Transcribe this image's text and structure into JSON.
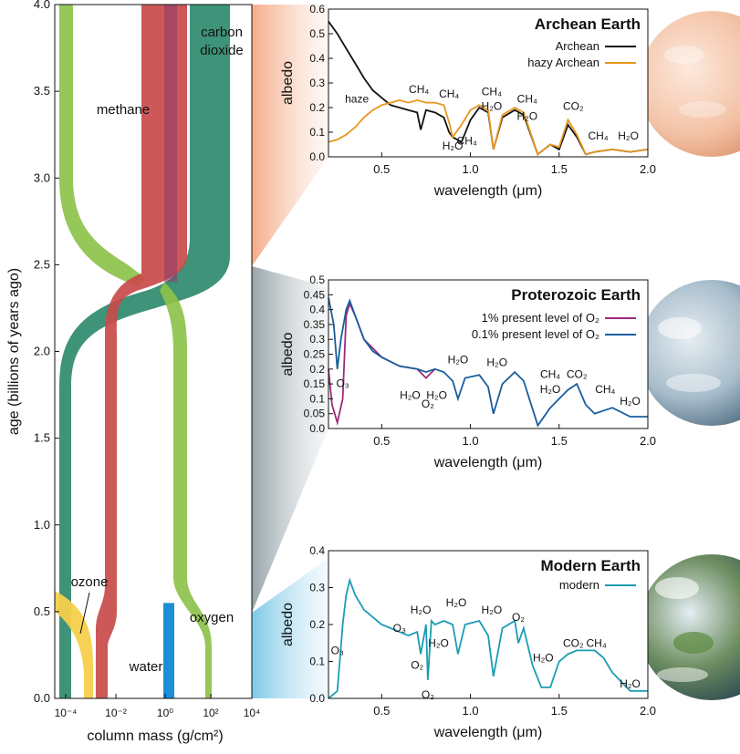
{
  "chart_data": [
    {
      "type": "area",
      "ylabel": "age (billions of years ago)",
      "xlabel": "column mass (g/cm²)",
      "x_scale": "log",
      "xlim": [
        1e-05,
        10000
      ],
      "ylim": [
        0,
        4.0
      ],
      "yticks": [
        "0.0",
        "0.5",
        "1.0",
        "1.5",
        "2.0",
        "2.5",
        "3.0",
        "3.5",
        "4.0"
      ],
      "xticks": [
        "10⁻⁴",
        "10⁻²",
        "10⁰",
        "10²",
        "10⁴"
      ],
      "series": [
        {
          "name": "carbon dioxide",
          "color": "#2e8a6e"
        },
        {
          "name": "methane",
          "color": "#c94a4a"
        },
        {
          "name": "oxygen",
          "color": "#8cc24b"
        },
        {
          "name": "ozone",
          "color": "#f5cf4a"
        },
        {
          "name": "water",
          "color": "#1a8fd8"
        }
      ],
      "labels": {
        "carbon_dioxide_1": "carbon",
        "carbon_dioxide_2": "dioxide",
        "methane": "methane",
        "oxygen": "oxygen",
        "ozone": "ozone",
        "water": "water"
      }
    },
    {
      "type": "line",
      "title": "Archean Earth",
      "xlabel": "wavelength (μm)",
      "ylabel": "albedo",
      "xlim": [
        0.2,
        2.0
      ],
      "ylim": [
        0,
        0.6
      ],
      "xticks": [
        "0.5",
        "1.0",
        "1.5",
        "2.0"
      ],
      "yticks": [
        "0.0",
        "0.1",
        "0.2",
        "0.3",
        "0.4",
        "0.5",
        "0.6"
      ],
      "series": [
        {
          "name": "Archean",
          "color": "#111111",
          "points": [
            [
              0.2,
              0.55
            ],
            [
              0.25,
              0.5
            ],
            [
              0.3,
              0.44
            ],
            [
              0.35,
              0.38
            ],
            [
              0.4,
              0.32
            ],
            [
              0.45,
              0.27
            ],
            [
              0.5,
              0.24
            ],
            [
              0.55,
              0.21
            ],
            [
              0.6,
              0.2
            ],
            [
              0.65,
              0.19
            ],
            [
              0.7,
              0.18
            ],
            [
              0.72,
              0.11
            ],
            [
              0.75,
              0.19
            ],
            [
              0.8,
              0.18
            ],
            [
              0.85,
              0.16
            ],
            [
              0.88,
              0.1
            ],
            [
              0.9,
              0.08
            ],
            [
              0.95,
              0.06
            ],
            [
              1.0,
              0.15
            ],
            [
              1.05,
              0.2
            ],
            [
              1.1,
              0.18
            ],
            [
              1.13,
              0.03
            ],
            [
              1.18,
              0.16
            ],
            [
              1.25,
              0.19
            ],
            [
              1.3,
              0.17
            ],
            [
              1.38,
              0.01
            ],
            [
              1.45,
              0.05
            ],
            [
              1.5,
              0.03
            ],
            [
              1.55,
              0.13
            ],
            [
              1.6,
              0.08
            ],
            [
              1.65,
              0.01
            ],
            [
              1.7,
              0.02
            ],
            [
              1.8,
              0.03
            ],
            [
              1.9,
              0.02
            ],
            [
              2.0,
              0.03
            ]
          ]
        },
        {
          "name": "hazy Archean",
          "color": "#e8961e",
          "points": [
            [
              0.2,
              0.06
            ],
            [
              0.25,
              0.07
            ],
            [
              0.3,
              0.09
            ],
            [
              0.35,
              0.12
            ],
            [
              0.4,
              0.16
            ],
            [
              0.45,
              0.19
            ],
            [
              0.5,
              0.21
            ],
            [
              0.55,
              0.22
            ],
            [
              0.6,
              0.23
            ],
            [
              0.65,
              0.22
            ],
            [
              0.7,
              0.23
            ],
            [
              0.75,
              0.22
            ],
            [
              0.8,
              0.22
            ],
            [
              0.85,
              0.21
            ],
            [
              0.88,
              0.14
            ],
            [
              0.9,
              0.08
            ],
            [
              0.95,
              0.13
            ],
            [
              1.0,
              0.19
            ],
            [
              1.05,
              0.21
            ],
            [
              1.1,
              0.19
            ],
            [
              1.13,
              0.03
            ],
            [
              1.18,
              0.17
            ],
            [
              1.25,
              0.2
            ],
            [
              1.3,
              0.18
            ],
            [
              1.38,
              0.01
            ],
            [
              1.45,
              0.05
            ],
            [
              1.5,
              0.04
            ],
            [
              1.55,
              0.15
            ],
            [
              1.6,
              0.09
            ],
            [
              1.65,
              0.01
            ],
            [
              1.7,
              0.02
            ],
            [
              1.8,
              0.03
            ],
            [
              1.9,
              0.02
            ],
            [
              2.0,
              0.03
            ]
          ]
        }
      ],
      "annotations": [
        {
          "text": "haze",
          "x": 0.36,
          "y": 0.22
        },
        {
          "text": "CH₄",
          "x": 0.71,
          "y": 0.26
        },
        {
          "text": "CH₄",
          "x": 0.88,
          "y": 0.24
        },
        {
          "text": "H₂O",
          "x": 0.9,
          "y": 0.03
        },
        {
          "text": "CH₄",
          "x": 0.98,
          "y": 0.05
        },
        {
          "text": "CH₄",
          "x": 1.12,
          "y": 0.25
        },
        {
          "text": "H₂O",
          "x": 1.12,
          "y": 0.19
        },
        {
          "text": "CH₄",
          "x": 1.32,
          "y": 0.22
        },
        {
          "text": "H₂O",
          "x": 1.32,
          "y": 0.15
        },
        {
          "text": "CO₂",
          "x": 1.58,
          "y": 0.19
        },
        {
          "text": "CH₄",
          "x": 1.72,
          "y": 0.07
        },
        {
          "text": "H₂O",
          "x": 1.89,
          "y": 0.07
        }
      ]
    },
    {
      "type": "line",
      "title": "Proterozoic Earth",
      "xlabel": "wavelength (μm)",
      "ylabel": "albedo",
      "xlim": [
        0.2,
        2.0
      ],
      "ylim": [
        0,
        0.5
      ],
      "xticks": [
        "0.5",
        "1.0",
        "1.5",
        "2.0"
      ],
      "yticks": [
        "0.0",
        "0.05",
        "0.1",
        "0.15",
        "0.2",
        "0.25",
        "0.3",
        "0.35",
        "0.4",
        "0.45",
        "0.5"
      ],
      "series": [
        {
          "name": "1% present level of O₂",
          "color": "#9b2b7d",
          "points": [
            [
              0.2,
              0.2
            ],
            [
              0.22,
              0.08
            ],
            [
              0.25,
              0.02
            ],
            [
              0.28,
              0.1
            ],
            [
              0.3,
              0.38
            ],
            [
              0.32,
              0.42
            ],
            [
              0.35,
              0.38
            ],
            [
              0.4,
              0.3
            ],
            [
              0.5,
              0.24
            ],
            [
              0.6,
              0.21
            ],
            [
              0.7,
              0.2
            ],
            [
              0.75,
              0.17
            ],
            [
              0.8,
              0.2
            ]
          ]
        },
        {
          "name": "0.1% present level of O₂",
          "color": "#1a5e9e",
          "points": [
            [
              0.2,
              0.44
            ],
            [
              0.23,
              0.35
            ],
            [
              0.25,
              0.2
            ],
            [
              0.27,
              0.3
            ],
            [
              0.3,
              0.4
            ],
            [
              0.32,
              0.43
            ],
            [
              0.35,
              0.38
            ],
            [
              0.4,
              0.3
            ],
            [
              0.45,
              0.26
            ],
            [
              0.5,
              0.24
            ],
            [
              0.6,
              0.21
            ],
            [
              0.7,
              0.2
            ],
            [
              0.75,
              0.19
            ],
            [
              0.8,
              0.2
            ],
            [
              0.85,
              0.19
            ],
            [
              0.9,
              0.16
            ],
            [
              0.93,
              0.1
            ],
            [
              0.97,
              0.17
            ],
            [
              1.05,
              0.18
            ],
            [
              1.1,
              0.14
            ],
            [
              1.13,
              0.05
            ],
            [
              1.18,
              0.15
            ],
            [
              1.25,
              0.19
            ],
            [
              1.3,
              0.16
            ],
            [
              1.38,
              0.01
            ],
            [
              1.45,
              0.07
            ],
            [
              1.5,
              0.1
            ],
            [
              1.55,
              0.13
            ],
            [
              1.6,
              0.15
            ],
            [
              1.65,
              0.08
            ],
            [
              1.7,
              0.05
            ],
            [
              1.8,
              0.07
            ],
            [
              1.9,
              0.04
            ],
            [
              2.0,
              0.04
            ]
          ]
        }
      ],
      "annotations": [
        {
          "text": "O₃",
          "x": 0.28,
          "y": 0.14
        },
        {
          "text": "H₂O",
          "x": 0.66,
          "y": 0.1
        },
        {
          "text": "O₂",
          "x": 0.76,
          "y": 0.07
        },
        {
          "text": "H₂O",
          "x": 0.81,
          "y": 0.1
        },
        {
          "text": "H₂O",
          "x": 0.93,
          "y": 0.22
        },
        {
          "text": "H₂O",
          "x": 1.15,
          "y": 0.21
        },
        {
          "text": "CH₄",
          "x": 1.45,
          "y": 0.17
        },
        {
          "text": "H₂O",
          "x": 1.45,
          "y": 0.12
        },
        {
          "text": "CO₂",
          "x": 1.6,
          "y": 0.17
        },
        {
          "text": "CH₄",
          "x": 1.76,
          "y": 0.12
        },
        {
          "text": "H₂O",
          "x": 1.9,
          "y": 0.08
        }
      ]
    },
    {
      "type": "line",
      "title": "Modern Earth",
      "xlabel": "wavelength (μm)",
      "ylabel": "albedo",
      "xlim": [
        0.2,
        2.0
      ],
      "ylim": [
        0,
        0.4
      ],
      "xticks": [
        "0.5",
        "1.0",
        "1.5",
        "2.0"
      ],
      "yticks": [
        "0.0",
        "0.1",
        "0.2",
        "0.3",
        "0.4"
      ],
      "series": [
        {
          "name": "modern",
          "color": "#1a9db3",
          "points": [
            [
              0.2,
              0.0
            ],
            [
              0.25,
              0.02
            ],
            [
              0.28,
              0.2
            ],
            [
              0.3,
              0.28
            ],
            [
              0.32,
              0.32
            ],
            [
              0.35,
              0.28
            ],
            [
              0.4,
              0.24
            ],
            [
              0.45,
              0.22
            ],
            [
              0.5,
              0.2
            ],
            [
              0.55,
              0.19
            ],
            [
              0.6,
              0.18
            ],
            [
              0.65,
              0.17
            ],
            [
              0.7,
              0.18
            ],
            [
              0.72,
              0.12
            ],
            [
              0.75,
              0.2
            ],
            [
              0.76,
              0.05
            ],
            [
              0.78,
              0.21
            ],
            [
              0.8,
              0.2
            ],
            [
              0.85,
              0.21
            ],
            [
              0.9,
              0.2
            ],
            [
              0.93,
              0.12
            ],
            [
              0.97,
              0.2
            ],
            [
              1.05,
              0.21
            ],
            [
              1.1,
              0.17
            ],
            [
              1.13,
              0.06
            ],
            [
              1.18,
              0.19
            ],
            [
              1.25,
              0.21
            ],
            [
              1.27,
              0.15
            ],
            [
              1.3,
              0.19
            ],
            [
              1.35,
              0.09
            ],
            [
              1.4,
              0.03
            ],
            [
              1.45,
              0.03
            ],
            [
              1.5,
              0.1
            ],
            [
              1.55,
              0.12
            ],
            [
              1.6,
              0.13
            ],
            [
              1.7,
              0.13
            ],
            [
              1.75,
              0.11
            ],
            [
              1.8,
              0.07
            ],
            [
              1.9,
              0.02
            ],
            [
              2.0,
              0.02
            ]
          ]
        }
      ],
      "annotations": [
        {
          "text": "O₃",
          "x": 0.25,
          "y": 0.12
        },
        {
          "text": "O₃",
          "x": 0.6,
          "y": 0.18
        },
        {
          "text": "H₂O",
          "x": 0.72,
          "y": 0.23
        },
        {
          "text": "O₂",
          "x": 0.7,
          "y": 0.08
        },
        {
          "text": "O₂",
          "x": 0.76,
          "y": 0.0
        },
        {
          "text": "H₂O",
          "x": 0.82,
          "y": 0.14
        },
        {
          "text": "H₂O",
          "x": 0.92,
          "y": 0.25
        },
        {
          "text": "H₂O",
          "x": 1.12,
          "y": 0.23
        },
        {
          "text": "O₂",
          "x": 1.27,
          "y": 0.21
        },
        {
          "text": "H₂O",
          "x": 1.41,
          "y": 0.1
        },
        {
          "text": "CO₂",
          "x": 1.58,
          "y": 0.14
        },
        {
          "text": "CH₄",
          "x": 1.71,
          "y": 0.14
        },
        {
          "text": "H₂O",
          "x": 1.9,
          "y": 0.03
        }
      ]
    }
  ]
}
